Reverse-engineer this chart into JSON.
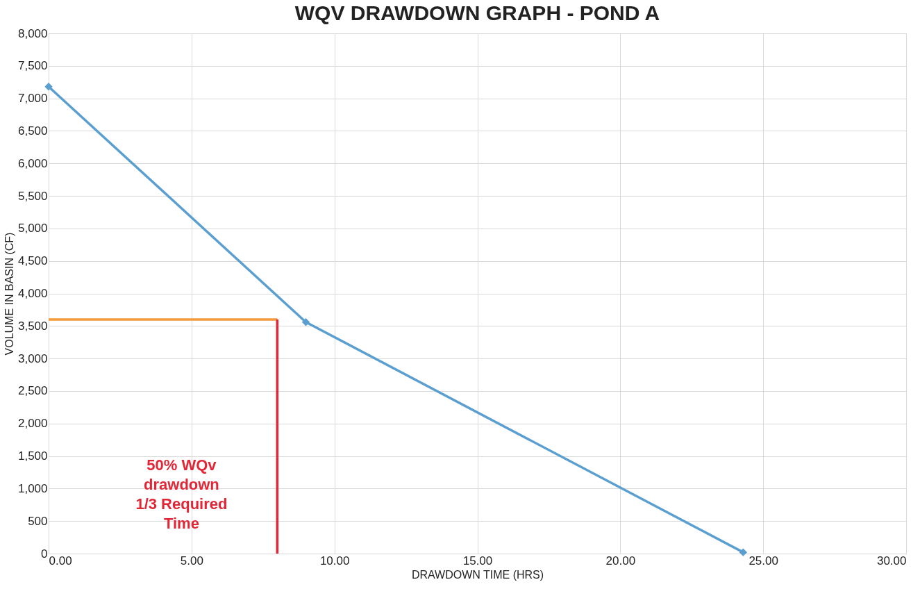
{
  "chart_data": {
    "type": "line",
    "title": "WQV DRAWDOWN GRAPH - POND A",
    "xlabel": "DRAWDOWN TIME (HRS)",
    "ylabel": "VOLUME IN BASIN (CF)",
    "series": [
      {
        "color": "#5a9fd0",
        "x": [
          0,
          9.0,
          24.3
        ],
        "values": [
          7180,
          3560,
          20
        ],
        "marker": "diamond"
      },
      {
        "color": "#f39a3b",
        "x": [
          0,
          8
        ],
        "values": [
          3600,
          3600
        ],
        "marker": "none"
      },
      {
        "color": "#e32636",
        "x": [
          8,
          8
        ],
        "values": [
          3600,
          0
        ],
        "marker": "none"
      }
    ],
    "xlim": [
      0,
      30
    ],
    "xticks": [
      {
        "value": 0,
        "label": "0.00"
      },
      {
        "value": 5,
        "label": "5.00"
      },
      {
        "value": 10,
        "label": "10.00"
      },
      {
        "value": 15,
        "label": "15.00"
      },
      {
        "value": 20,
        "label": "20.00"
      },
      {
        "value": 25,
        "label": "25.00"
      },
      {
        "value": 30,
        "label": "30.00"
      }
    ],
    "ylim": [
      0,
      8000
    ],
    "yticks": [
      0,
      500,
      {
        "value": 1000,
        "label": "1,000"
      },
      {
        "value": 1500,
        "label": "1,500"
      },
      {
        "value": 2000,
        "label": "2,000"
      },
      {
        "value": 2500,
        "label": "2,500"
      },
      {
        "value": 3000,
        "label": "3,000"
      },
      {
        "value": 3500,
        "label": "3,500"
      },
      {
        "value": 4000,
        "label": "4,000"
      },
      {
        "value": 4500,
        "label": "4,500"
      },
      {
        "value": 5000,
        "label": "5,000"
      },
      {
        "value": 5500,
        "label": "5,500"
      },
      {
        "value": 6000,
        "label": "6,000"
      },
      {
        "value": 6500,
        "label": "6,500"
      },
      {
        "value": 7000,
        "label": "7,000"
      },
      {
        "value": 7500,
        "label": "7,500"
      },
      {
        "value": 8000,
        "label": "8,000"
      }
    ],
    "annotations": [
      "50% WQv\ndrawdown\n1/3 Required\nTime"
    ],
    "grid": true,
    "line_style": "solid"
  }
}
